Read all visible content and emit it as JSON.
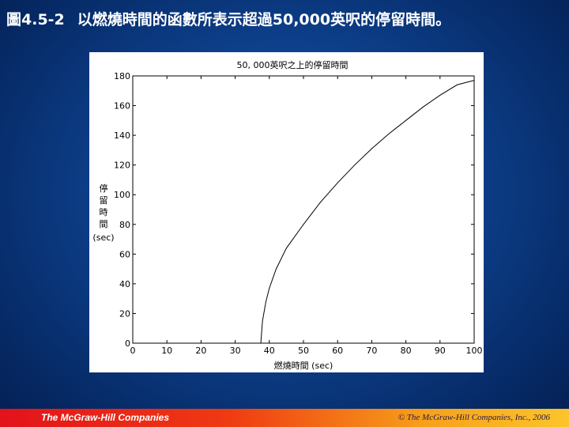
{
  "slide": {
    "figure_number": "圖4.5-2",
    "caption": "以燃燒時間的函數所表示超過50,000英呎的停留時間。"
  },
  "chart_data": {
    "type": "line",
    "title": "50, 000英呎之上的停留時間",
    "xlabel": "燃燒時間 (sec)",
    "ylabel_chars": [
      "停",
      "留",
      "時",
      "間"
    ],
    "ylabel_unit": "(sec)",
    "xlim": [
      0,
      100
    ],
    "ylim": [
      0,
      180
    ],
    "x_ticks": [
      0,
      10,
      20,
      30,
      40,
      50,
      60,
      70,
      80,
      90,
      100
    ],
    "y_ticks": [
      0,
      20,
      40,
      60,
      80,
      100,
      120,
      140,
      160,
      180
    ],
    "grid": false,
    "series": [
      {
        "x": [
          37.5,
          38,
          39,
          40,
          42,
          45,
          50,
          55,
          60,
          65,
          70,
          75,
          80,
          85,
          90,
          95,
          100
        ],
        "y": [
          0,
          15,
          28,
          37,
          50,
          64,
          80,
          95,
          108,
          120,
          131,
          141,
          150,
          159,
          167,
          174,
          177
        ]
      }
    ]
  },
  "footer": {
    "logo": "The McGraw-Hill Companies",
    "copyright": "© The McGraw-Hill Companies, Inc., 2006"
  },
  "colors": {
    "background": "#0d3f8a",
    "footer_start": "#e3121b",
    "footer_end": "#fcc52a",
    "line": "#000000"
  }
}
